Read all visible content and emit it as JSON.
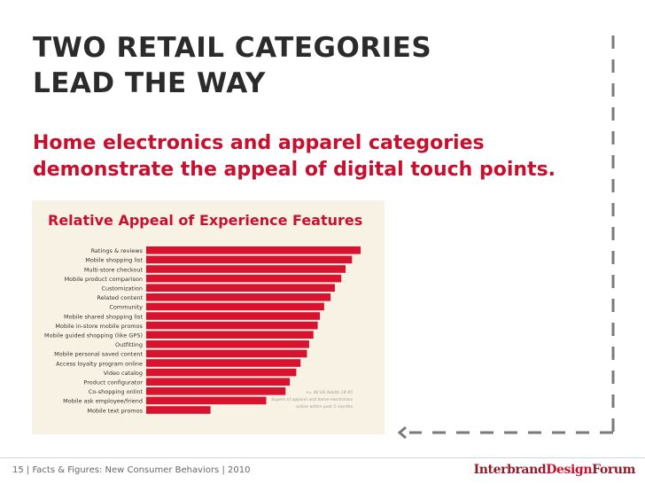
{
  "slide": {
    "title_line1": "TWO RETAIL CATEGORIES",
    "title_line2": "LEAD THE WAY",
    "subtitle_line1": "Home electronics and apparel categories",
    "subtitle_line2": "demonstrate the appeal of digital touch points."
  },
  "footer": {
    "text": "15  |  Facts & Figures: New Consumer Behaviors  |  2010",
    "logo_part1": "Interbrand",
    "logo_part2": "Design",
    "logo_part3": "Forum"
  },
  "colors": {
    "accent": "#c8102e",
    "chart_background": "#f7f2e4",
    "dash": "#7a7a7a",
    "title": "#2b2b2b"
  },
  "chart_data": {
    "type": "bar",
    "orientation": "horizontal",
    "title": "Relative Appeal of Experience Features",
    "categories": [
      "Ratings & reviews",
      "Mobile shopping list",
      "Multi-store checkout",
      "Mobile product comparison",
      "Customization",
      "Related content",
      "Community",
      "Mobile shared shopping list",
      "Mobile in-store mobile promos",
      "Mobile guided shopping (like GPS)",
      "Outfitting",
      "Mobile personal saved content",
      "Access loyalty program online",
      "Video catalog",
      "Product configurator",
      "Co-shopping onlint",
      "Mobile ask employee/friend",
      "Mobile text promos"
    ],
    "values": [
      100,
      96,
      93,
      91,
      88,
      86,
      83,
      81,
      80,
      78,
      76,
      75,
      72,
      70,
      67,
      65,
      56,
      30
    ],
    "xlim": [
      0,
      100
    ],
    "color": "#d8122f",
    "note_lines": [
      "n= 40 US Adults 18-45",
      "buyers of apparel and home electronics",
      "online within past 3 months"
    ]
  }
}
